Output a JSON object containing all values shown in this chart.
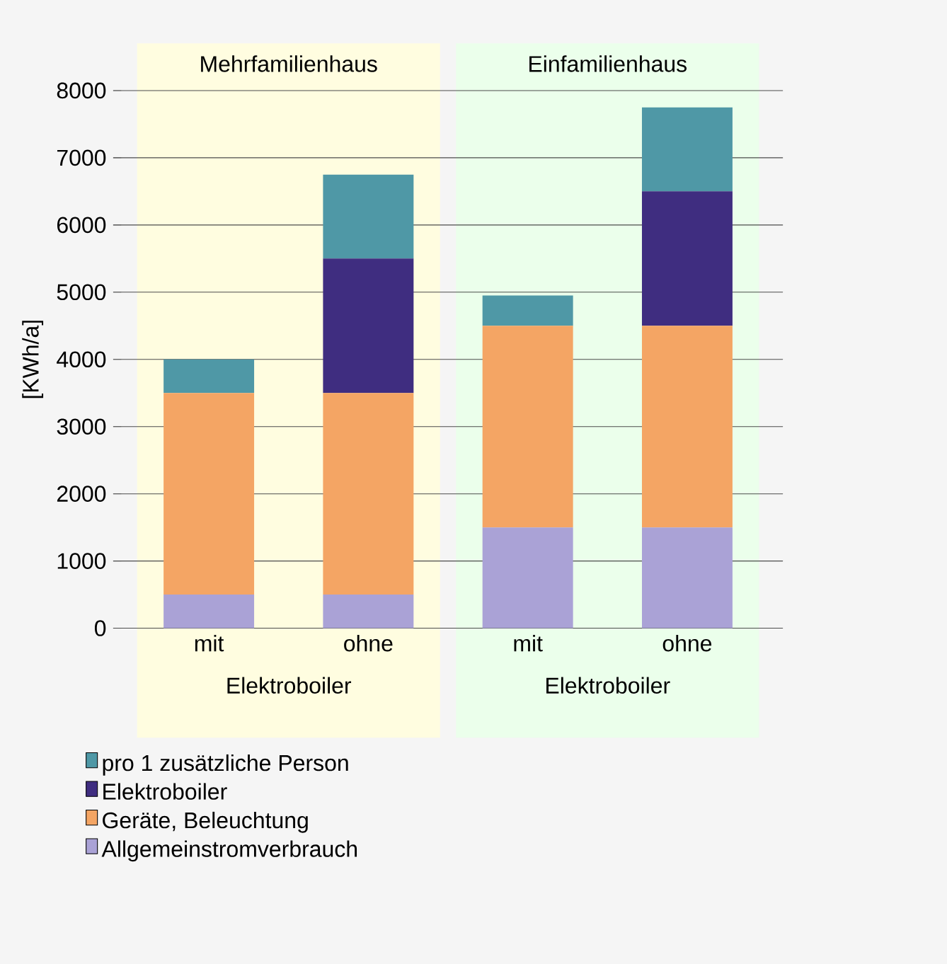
{
  "chart_data": {
    "type": "bar",
    "stacked": true,
    "ylabel": "[KWh/a]",
    "categories": [
      "mit",
      "ohne",
      "mit",
      "ohne"
    ],
    "series": [
      {
        "name": "Allgemeinstromverbrauch",
        "color": "#aaa2d6",
        "values": [
          500,
          500,
          1500,
          1500
        ]
      },
      {
        "name": "Geräte, Beleuchtung",
        "color": "#f4a564",
        "values": [
          3000,
          3000,
          3000,
          3000
        ]
      },
      {
        "name": "Elektroboiler",
        "color": "#3f2d80",
        "values": [
          null,
          2000,
          null,
          2000
        ]
      },
      {
        "name": "pro 1 zusätzliche Person",
        "color": "#4f98a6",
        "values": [
          500,
          1250,
          450,
          1250
        ]
      }
    ],
    "ylim": [
      0,
      8000
    ],
    "yticks": [
      0,
      1000,
      2000,
      3000,
      4000,
      5000,
      6000,
      7000,
      8000
    ],
    "grid": "y",
    "legend": "bottom left",
    "annotations": [
      "Mehrfamilienhaus",
      "Einfamilienhaus",
      "Elektroboiler",
      "Elektroboiler"
    ]
  }
}
